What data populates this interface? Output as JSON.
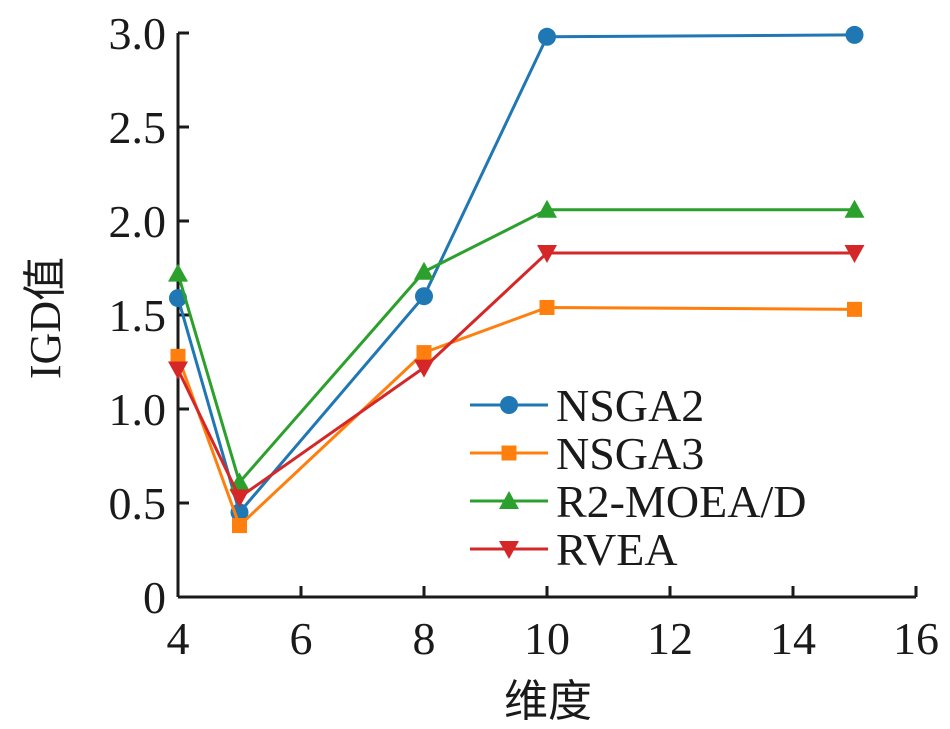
{
  "chart_data": {
    "type": "line",
    "xlabel": "维度",
    "ylabel": "IGD值",
    "xlim": [
      4,
      16
    ],
    "ylim": [
      0,
      3.0
    ],
    "xticks": [
      "4",
      "6",
      "8",
      "10",
      "12",
      "14",
      "16"
    ],
    "yticks": [
      "0",
      "0.5",
      "1.0",
      "1.5",
      "2.0",
      "2.5",
      "3.0"
    ],
    "x": [
      4,
      5,
      8,
      10,
      15
    ],
    "legend_position": "lower-right",
    "grid": false,
    "series": [
      {
        "name": "NSGA2",
        "marker": "circle",
        "color": "#1f77b4",
        "values": [
          1.59,
          0.45,
          1.6,
          2.98,
          2.99
        ]
      },
      {
        "name": "NSGA3",
        "marker": "square",
        "color": "#ff7f0e",
        "values": [
          1.28,
          0.38,
          1.3,
          1.54,
          1.53
        ]
      },
      {
        "name": "R2-MOEA/D",
        "marker": "triangle-up",
        "color": "#2ca02c",
        "values": [
          1.72,
          0.61,
          1.73,
          2.06,
          2.06
        ]
      },
      {
        "name": "RVEA",
        "marker": "triangle-down",
        "color": "#d62728",
        "values": [
          1.21,
          0.53,
          1.22,
          1.83,
          1.83
        ]
      }
    ]
  }
}
